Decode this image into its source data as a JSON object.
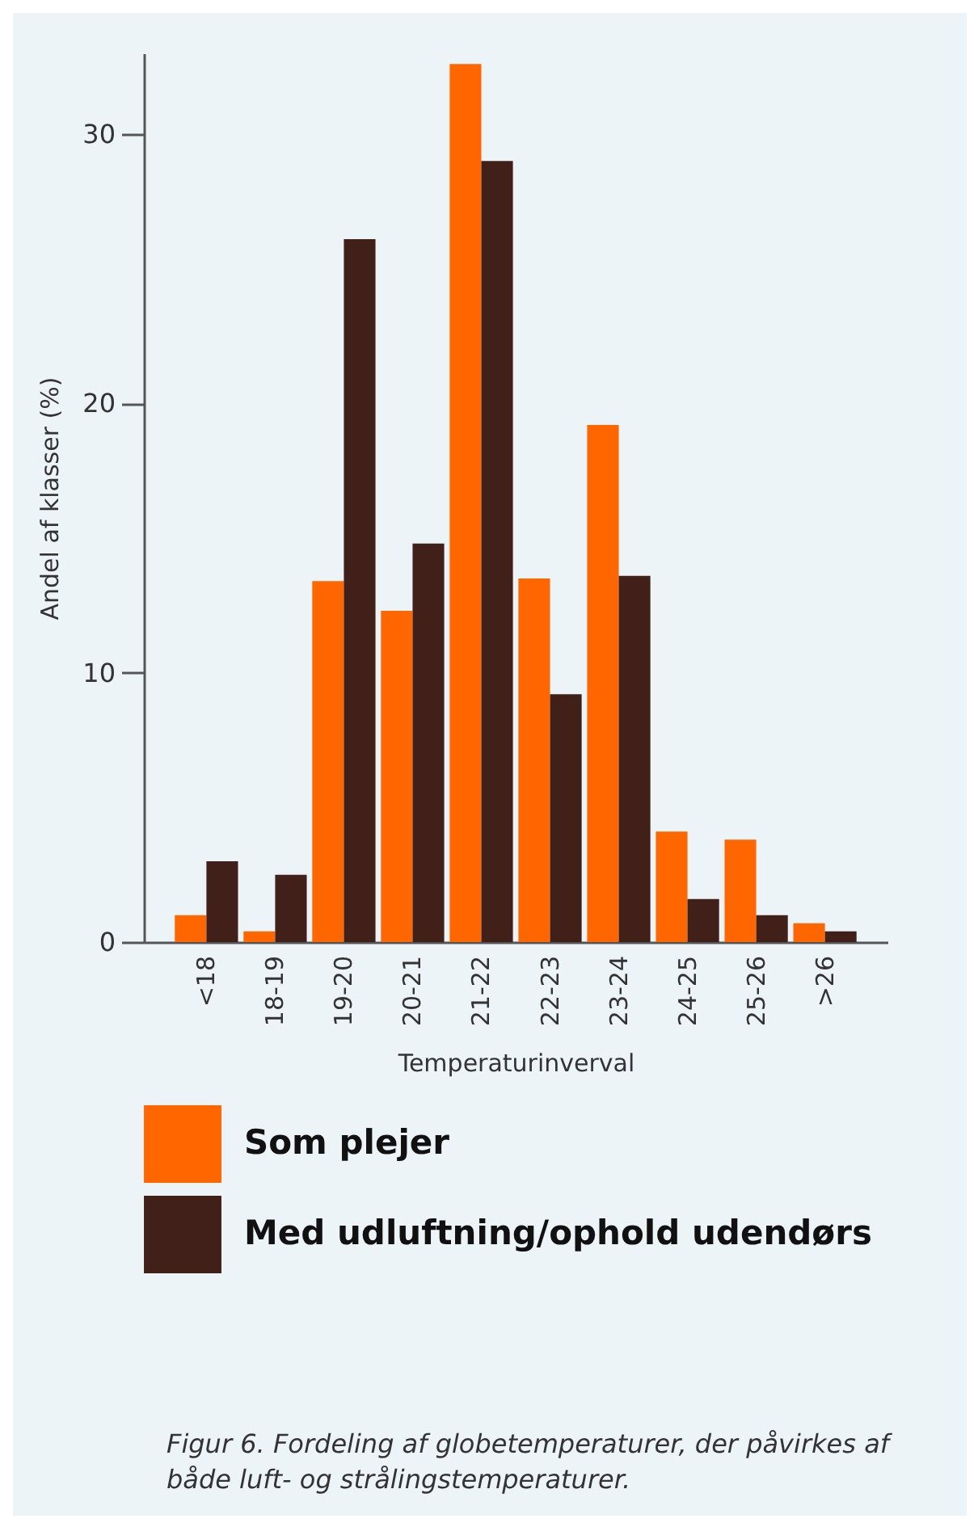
{
  "chart_data": {
    "type": "bar",
    "xlabel": "Temperaturinverval",
    "ylabel": "Andel af klasser (%)",
    "categories": [
      "<18",
      "18-19",
      "19-20",
      "20-21",
      "21-22",
      "22-23",
      "23-24",
      "24-25",
      "25-26",
      ">26"
    ],
    "series": [
      {
        "name": "Som plejer",
        "color": "#ff6600",
        "values": [
          1.0,
          0.4,
          13.4,
          12.3,
          32.6,
          13.5,
          19.2,
          4.1,
          3.8,
          0.7
        ]
      },
      {
        "name": "Med udluftning/ophold udendørs",
        "color": "#42201a",
        "values": [
          3.0,
          2.5,
          26.1,
          14.8,
          29.0,
          9.2,
          13.6,
          1.6,
          1.0,
          0.4
        ]
      }
    ],
    "ylim": [
      0,
      33
    ],
    "yticks": [
      0,
      10,
      20,
      30
    ],
    "grid": false,
    "legend": "bottom",
    "annotations": [
      "Figur 6. Fordeling af globetemperaturer, der påvirkes af både luft- og strålingstemperaturer."
    ]
  }
}
